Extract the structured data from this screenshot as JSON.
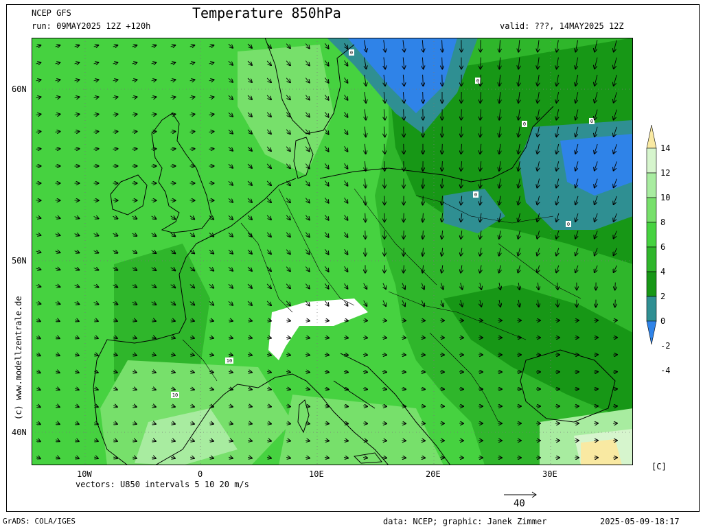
{
  "header": {
    "model": "NCEP GFS",
    "run": "run: 09MAY2025 12Z +120h",
    "title": "Temperature 850hPa",
    "valid": "valid: ???, 14MAY2025 12Z"
  },
  "axes": {
    "lat_labels": [
      "60N",
      "50N",
      "40N"
    ],
    "lon_labels": [
      "10W",
      "0",
      "10E",
      "20E",
      "30E"
    ]
  },
  "vectors_note": "vectors: U850 intervals 5 10 20 m/s",
  "ref_vector": "40",
  "watermark": "(c) www.modellzentrale.de",
  "colorbar": {
    "levels": [
      "14",
      "12",
      "10",
      "8",
      "6",
      "4",
      "2",
      "0",
      "-2",
      "-4"
    ],
    "colors": [
      "#f9e9a2",
      "#d6f5cd",
      "#a8eca0",
      "#77e06b",
      "#46d240",
      "#2fb62b",
      "#179716",
      "#2f8f92",
      "#2f83e8"
    ],
    "unit": "[C]"
  },
  "contour_labels": [
    "0",
    "0",
    "0",
    "0",
    "0",
    "0",
    "10",
    "10"
  ],
  "footer": {
    "left": "GrADS: COLA/IGES",
    "center": "data: NCEP; graphic: Janek Zimmer",
    "right": "2025-05-09-18:17"
  }
}
